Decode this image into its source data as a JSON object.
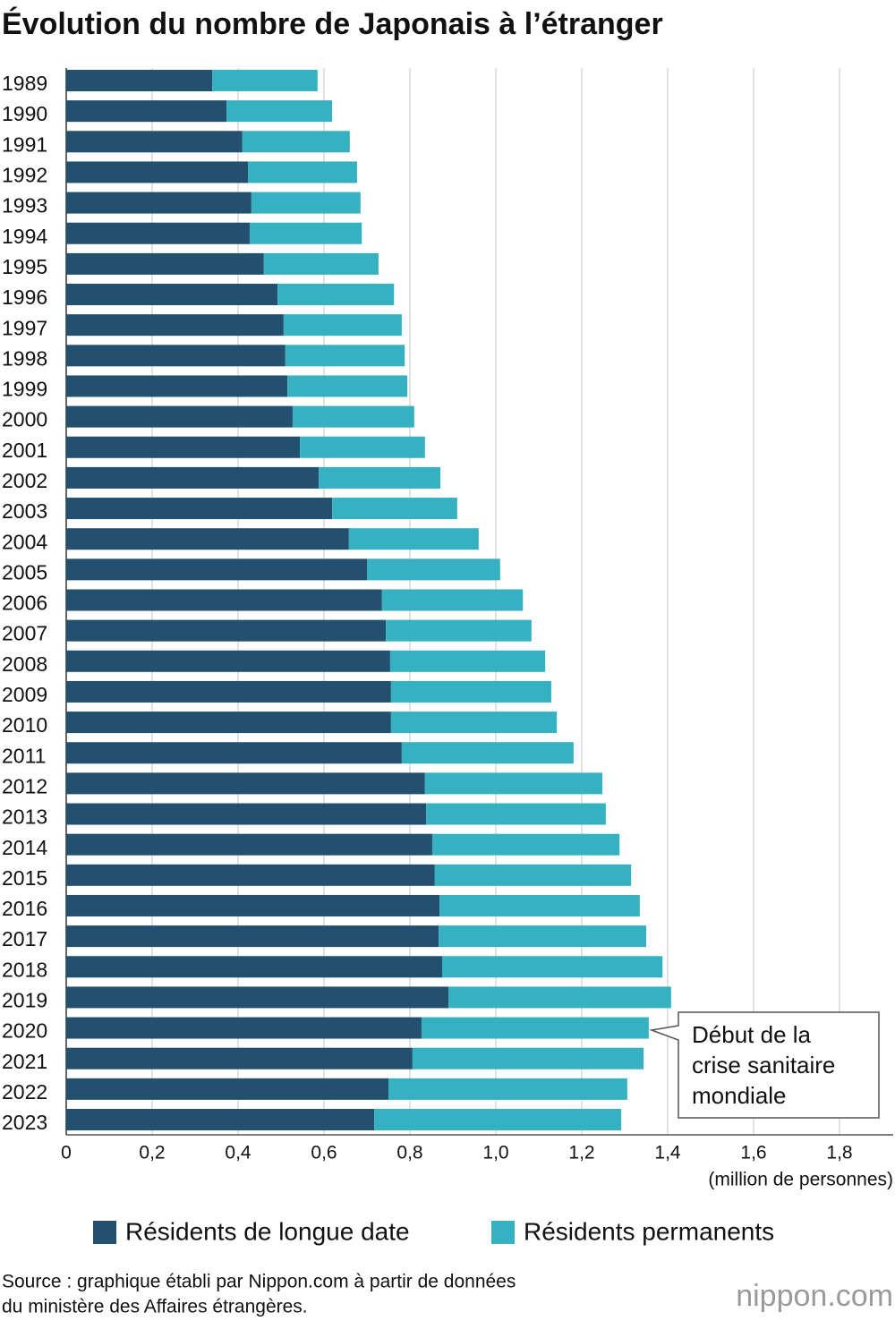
{
  "chart_data": {
    "type": "barh_stacked",
    "title": "Évolution du nombre de Japonais à l’étranger",
    "categories": [
      "1989",
      "1990",
      "1991",
      "1992",
      "1993",
      "1994",
      "1995",
      "1996",
      "1997",
      "1998",
      "1999",
      "2000",
      "2001",
      "2002",
      "2003",
      "2004",
      "2005",
      "2006",
      "2007",
      "2008",
      "2009",
      "2010",
      "2011",
      "2012",
      "2013",
      "2014",
      "2015",
      "2016",
      "2017",
      "2018",
      "2019",
      "2020",
      "2021",
      "2022",
      "2023"
    ],
    "series": [
      {
        "name": "Résidents de longue date",
        "color": "#22506e",
        "values": [
          0.34,
          0.373,
          0.41,
          0.423,
          0.431,
          0.427,
          0.46,
          0.492,
          0.506,
          0.51,
          0.515,
          0.527,
          0.544,
          0.588,
          0.619,
          0.658,
          0.7,
          0.735,
          0.744,
          0.754,
          0.756,
          0.756,
          0.781,
          0.835,
          0.838,
          0.852,
          0.858,
          0.869,
          0.867,
          0.875,
          0.89,
          0.827,
          0.806,
          0.75,
          0.717
        ]
      },
      {
        "name": "Résidents permanents",
        "color": "#35b1c2",
        "values": [
          0.245,
          0.246,
          0.25,
          0.254,
          0.254,
          0.261,
          0.267,
          0.271,
          0.275,
          0.278,
          0.279,
          0.283,
          0.291,
          0.283,
          0.291,
          0.302,
          0.31,
          0.328,
          0.339,
          0.361,
          0.373,
          0.386,
          0.4,
          0.413,
          0.418,
          0.436,
          0.457,
          0.466,
          0.483,
          0.513,
          0.518,
          0.529,
          0.538,
          0.556,
          0.575
        ]
      }
    ],
    "xlim": [
      0,
      1.9
    ],
    "xticks": [
      0,
      {
        "value": 0.2,
        "label": "0,2"
      },
      {
        "value": 0.4,
        "label": "0,4"
      },
      {
        "value": 0.6,
        "label": "0,6"
      },
      {
        "value": 0.8,
        "label": "0,8"
      },
      {
        "value": 1.0,
        "label": "1,0"
      },
      {
        "value": 1.2,
        "label": "1,2"
      },
      {
        "value": 1.4,
        "label": "1,4"
      },
      {
        "value": 1.6,
        "label": "1,6"
      },
      {
        "value": 1.8,
        "label": "1,8"
      }
    ],
    "x_label": "(million de personnes)",
    "grid": true,
    "annotation": [
      "Début de la",
      "crise sanitaire",
      "mondiale"
    ],
    "source": [
      "Source : graphique établi par Nippon.com à partir de données",
      "du ministère des Affaires étrangères."
    ],
    "logo": "nippon.com"
  }
}
